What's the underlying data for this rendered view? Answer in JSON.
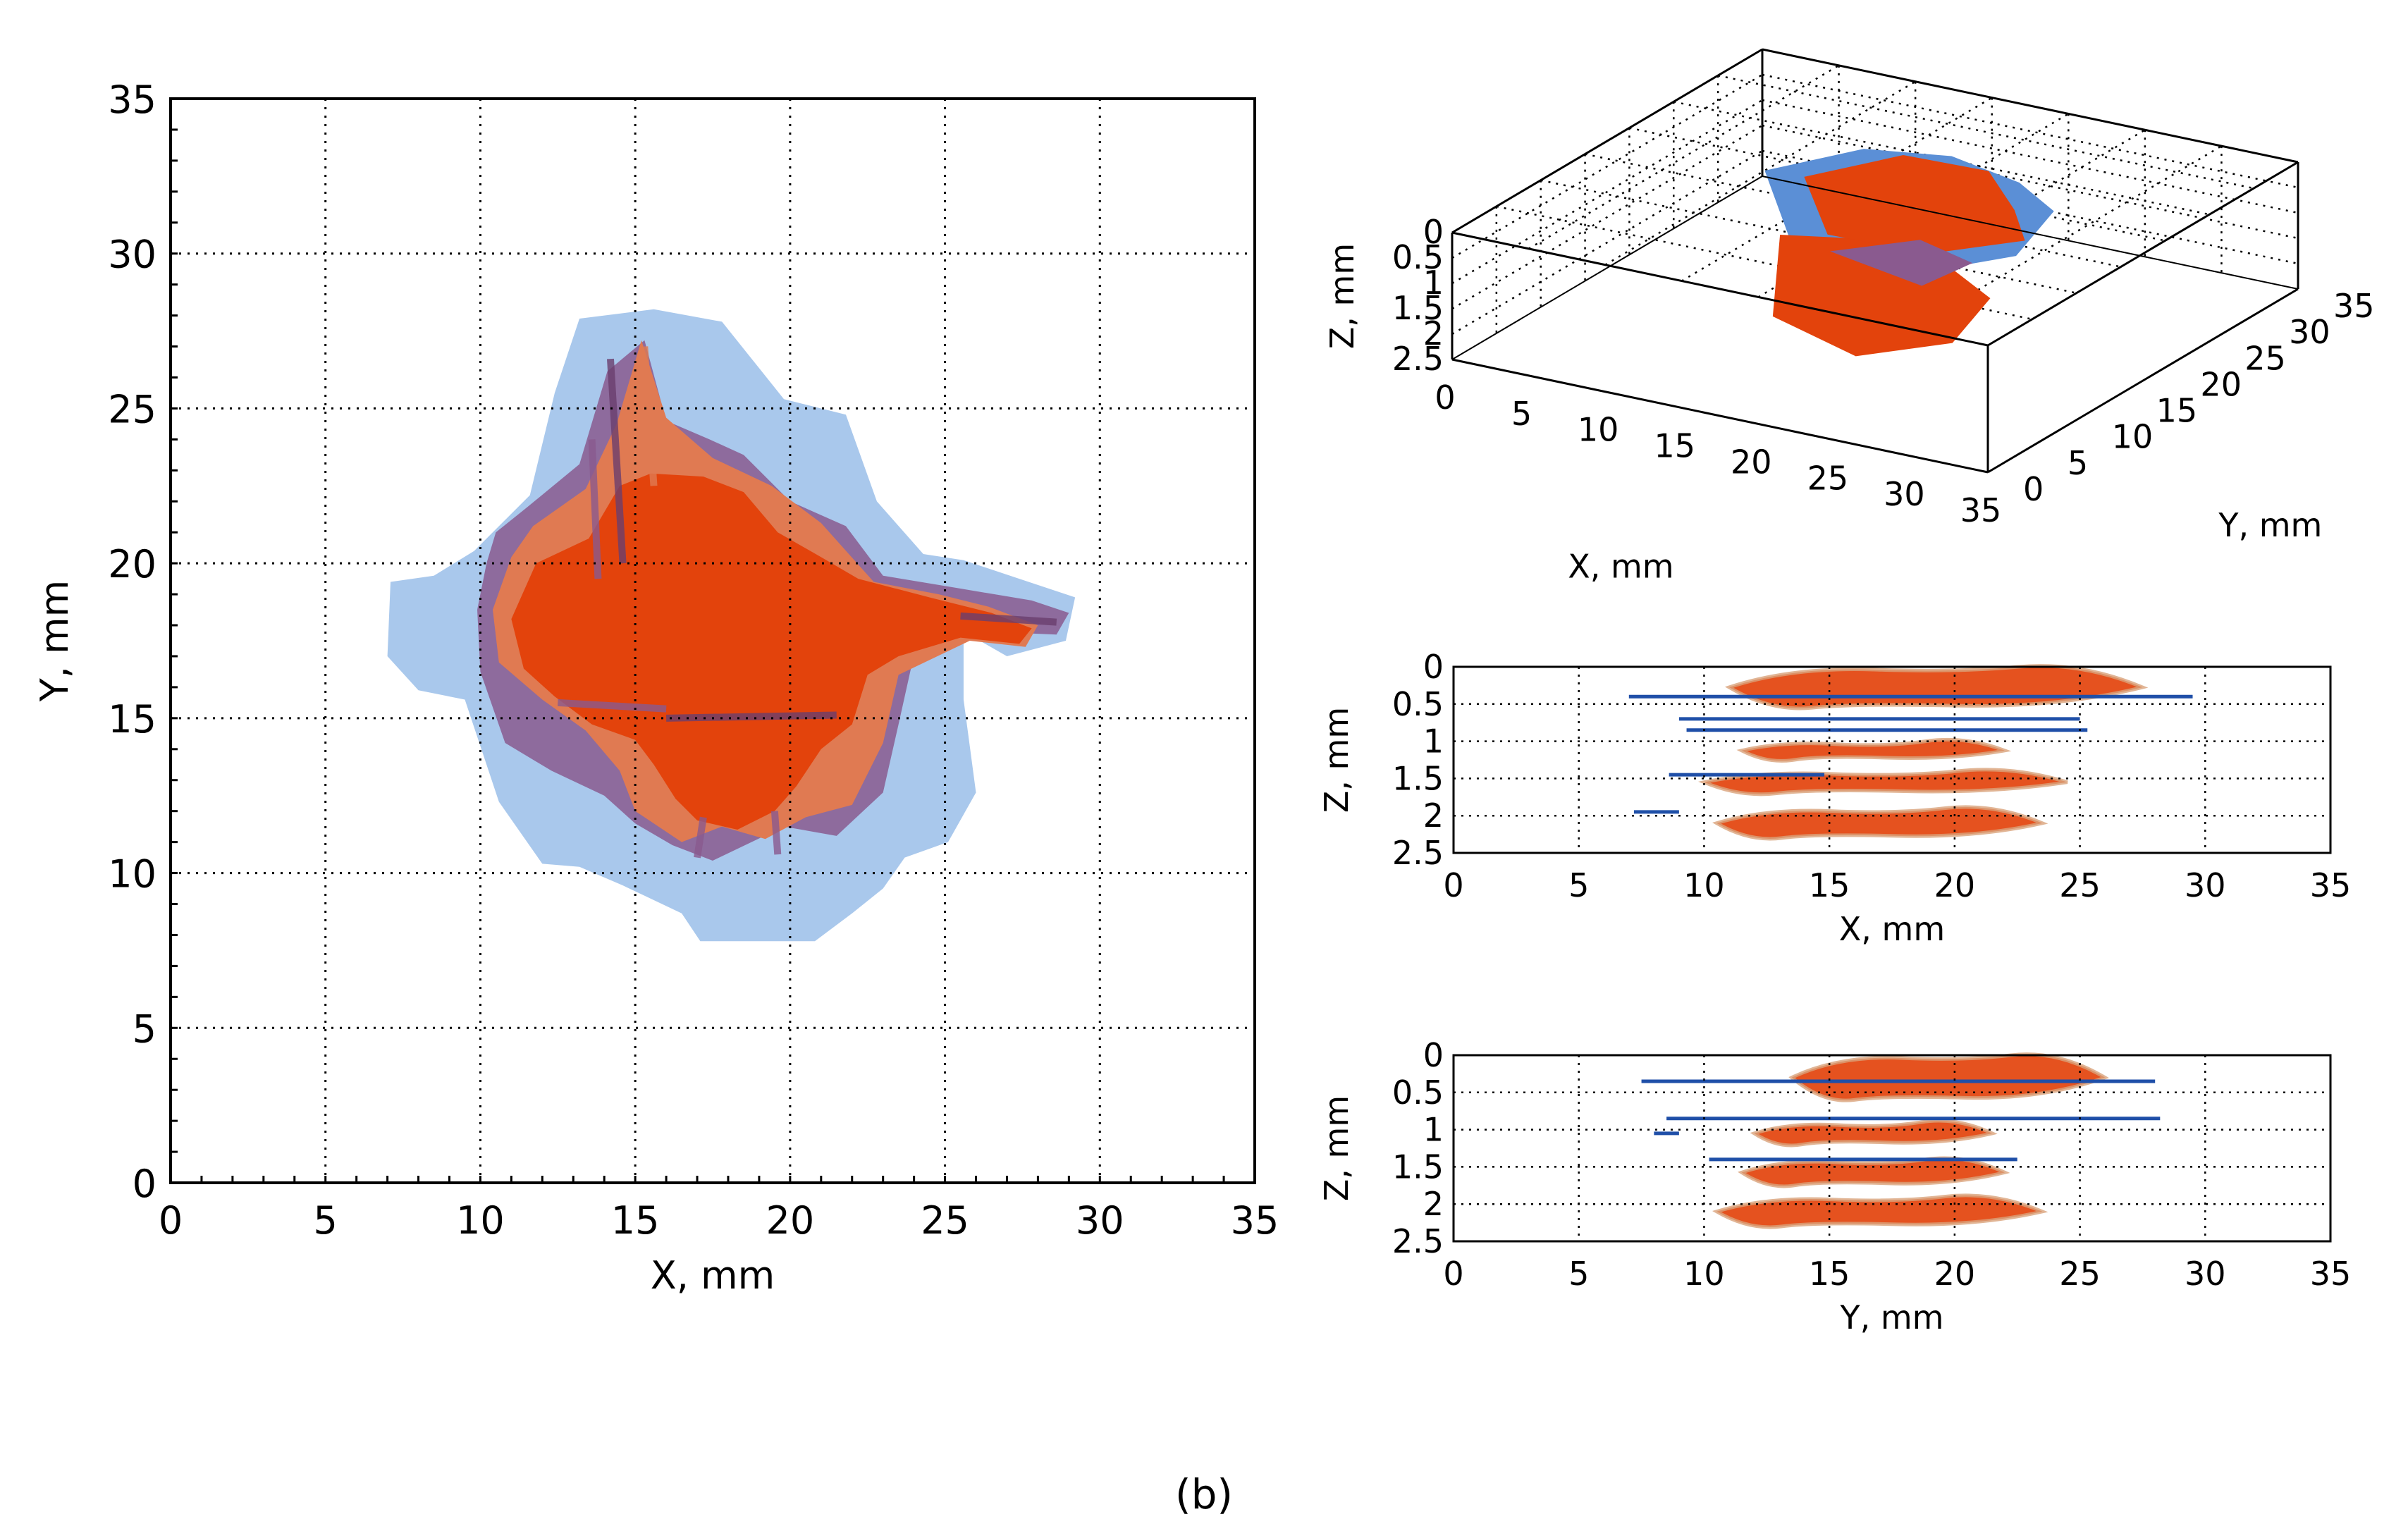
{
  "figure_label": "(b)",
  "colors": {
    "light_blue": "#a9c8ec",
    "mid_blue": "#5b8fd6",
    "dark_blue": "#1f4fa8",
    "orange": "#e3430c",
    "salmon": "#e07a52",
    "tan": "#d9a27a",
    "purple": "#8a5a8f",
    "dark_purple": "#6b3f6e"
  },
  "chart_data": [
    {
      "id": "main-xy",
      "type": "heatmap",
      "title": "",
      "xlabel": "X, mm",
      "ylabel": "Y, mm",
      "xlim": [
        0,
        35
      ],
      "ylim": [
        0,
        35
      ],
      "xticks": [
        "0",
        "5",
        "10",
        "15",
        "20",
        "25",
        "30",
        "35"
      ],
      "yticks": [
        "0",
        "5",
        "10",
        "15",
        "20",
        "25",
        "30",
        "35"
      ],
      "grid": true,
      "regions": [
        {
          "name": "light-blue-footprint",
          "color": "light_blue",
          "polygon": [
            [
              8.5,
              19.6
            ],
            [
              9.8,
              20.4
            ],
            [
              11.6,
              22.2
            ],
            [
              12.4,
              25.5
            ],
            [
              13.2,
              27.9
            ],
            [
              15.6,
              28.2
            ],
            [
              17.8,
              27.8
            ],
            [
              19.0,
              26.3
            ],
            [
              19.8,
              25.3
            ],
            [
              21.8,
              24.8
            ],
            [
              22.8,
              22.0
            ],
            [
              24.3,
              20.3
            ],
            [
              25.6,
              20.1
            ],
            [
              27.4,
              19.5
            ],
            [
              29.2,
              18.9
            ],
            [
              28.9,
              17.5
            ],
            [
              27.0,
              17.0
            ],
            [
              25.6,
              17.8
            ],
            [
              25.6,
              15.6
            ],
            [
              26.0,
              12.6
            ],
            [
              25.1,
              11.0
            ],
            [
              23.7,
              10.5
            ],
            [
              23.0,
              9.5
            ],
            [
              22.0,
              8.7
            ],
            [
              20.8,
              7.8
            ],
            [
              17.1,
              7.8
            ],
            [
              16.5,
              8.7
            ],
            [
              14.6,
              9.6
            ],
            [
              13.2,
              10.2
            ],
            [
              12.0,
              10.3
            ],
            [
              10.6,
              12.3
            ],
            [
              9.5,
              15.6
            ],
            [
              8.0,
              15.9
            ],
            [
              7.0,
              17.0
            ],
            [
              7.1,
              19.4
            ]
          ]
        },
        {
          "name": "purple-damage",
          "color": "purple",
          "polygon": [
            [
              10.5,
              21.0
            ],
            [
              11.5,
              21.8
            ],
            [
              13.2,
              23.2
            ],
            [
              14.1,
              26.2
            ],
            [
              15.3,
              27.2
            ],
            [
              16.0,
              24.6
            ],
            [
              17.4,
              24.0
            ],
            [
              18.5,
              23.5
            ],
            [
              20.0,
              22.0
            ],
            [
              21.8,
              21.2
            ],
            [
              23.0,
              19.6
            ],
            [
              25.4,
              19.2
            ],
            [
              27.8,
              18.8
            ],
            [
              29.0,
              18.4
            ],
            [
              28.6,
              17.7
            ],
            [
              26.2,
              17.8
            ],
            [
              23.9,
              16.6
            ],
            [
              23.5,
              14.8
            ],
            [
              23.0,
              12.6
            ],
            [
              21.5,
              11.2
            ],
            [
              19.8,
              11.5
            ],
            [
              17.5,
              10.4
            ],
            [
              16.2,
              10.9
            ],
            [
              15.0,
              11.6
            ],
            [
              14.0,
              12.5
            ],
            [
              12.3,
              13.3
            ],
            [
              10.8,
              14.2
            ],
            [
              10.0,
              16.5
            ],
            [
              9.9,
              18.5
            ],
            [
              10.2,
              20.0
            ]
          ]
        },
        {
          "name": "salmon-damage",
          "color": "salmon",
          "polygon": [
            [
              11.7,
              21.2
            ],
            [
              13.4,
              22.4
            ],
            [
              14.4,
              24.5
            ],
            [
              15.2,
              27.2
            ],
            [
              16.0,
              24.7
            ],
            [
              17.5,
              23.4
            ],
            [
              19.4,
              22.5
            ],
            [
              21.0,
              21.3
            ],
            [
              22.7,
              19.4
            ],
            [
              24.8,
              19.0
            ],
            [
              26.4,
              18.6
            ],
            [
              28.0,
              18.0
            ],
            [
              27.6,
              17.3
            ],
            [
              25.8,
              17.5
            ],
            [
              23.5,
              16.4
            ],
            [
              23.0,
              14.2
            ],
            [
              22.0,
              12.2
            ],
            [
              20.5,
              11.8
            ],
            [
              19.2,
              11.1
            ],
            [
              17.8,
              11.5
            ],
            [
              16.5,
              11.0
            ],
            [
              15.0,
              12.0
            ],
            [
              14.5,
              13.3
            ],
            [
              13.4,
              14.6
            ],
            [
              12.0,
              15.6
            ],
            [
              10.6,
              16.8
            ],
            [
              10.4,
              18.5
            ],
            [
              11.0,
              20.2
            ]
          ]
        },
        {
          "name": "orange-core",
          "color": "orange",
          "polygon": [
            [
              11.8,
              20.0
            ],
            [
              13.5,
              20.8
            ],
            [
              14.5,
              22.5
            ],
            [
              15.5,
              22.9
            ],
            [
              17.2,
              22.8
            ],
            [
              18.5,
              22.3
            ],
            [
              19.6,
              21.0
            ],
            [
              21.0,
              20.2
            ],
            [
              22.2,
              19.5
            ],
            [
              24.5,
              18.9
            ],
            [
              26.5,
              18.4
            ],
            [
              27.8,
              17.9
            ],
            [
              27.4,
              17.4
            ],
            [
              25.5,
              17.6
            ],
            [
              23.5,
              17.0
            ],
            [
              22.5,
              16.4
            ],
            [
              22.0,
              14.8
            ],
            [
              21.0,
              14.0
            ],
            [
              20.2,
              12.8
            ],
            [
              19.5,
              12.0
            ],
            [
              18.3,
              11.4
            ],
            [
              17.0,
              11.7
            ],
            [
              16.3,
              12.4
            ],
            [
              15.6,
              13.5
            ],
            [
              15.0,
              14.3
            ],
            [
              13.6,
              14.8
            ],
            [
              12.4,
              15.7
            ],
            [
              11.4,
              16.6
            ],
            [
              11.0,
              18.2
            ]
          ]
        }
      ]
    },
    {
      "id": "iso-3d",
      "type": "scatter",
      "title": "",
      "xlabel": "X, mm",
      "ylabel": "Y, mm",
      "zlabel": "Z, mm",
      "xlim": [
        0,
        35
      ],
      "ylim": [
        0,
        35
      ],
      "zlim": [
        0,
        2.5
      ],
      "xticks": [
        "0",
        "5",
        "10",
        "15",
        "20",
        "25",
        "30",
        "35"
      ],
      "yticks": [
        "0",
        "5",
        "10",
        "15",
        "20",
        "25",
        "30",
        "35"
      ],
      "zticks": [
        "0",
        "0.5",
        "1",
        "1.5",
        "2",
        "2.5"
      ],
      "grid": true
    },
    {
      "id": "xz-section",
      "type": "scatter",
      "title": "",
      "xlabel": "X, mm",
      "ylabel": "Z, mm",
      "xlim": [
        0,
        35
      ],
      "ylim": [
        0,
        2.5
      ],
      "xticks": [
        "0",
        "5",
        "10",
        "15",
        "20",
        "25",
        "30",
        "35"
      ],
      "yticks": [
        "0",
        "0.5",
        "1",
        "1.5",
        "2",
        "2.5"
      ],
      "grid": true,
      "blue_lines": [
        {
          "x": [
            7.0,
            29.5
          ],
          "z": 0.4
        },
        {
          "x": [
            9.0,
            25.0
          ],
          "z": 0.7
        },
        {
          "x": [
            9.3,
            25.3
          ],
          "z": 0.85
        },
        {
          "x": [
            8.6,
            14.8
          ],
          "z": 1.45
        },
        {
          "x": [
            7.2,
            9.0
          ],
          "z": 1.95
        }
      ],
      "orange_regions": [
        {
          "x": [
            10.5,
            23.5
          ],
          "z": [
            1.9,
            2.3
          ]
        },
        {
          "x": [
            10.0,
            24.5
          ],
          "z": [
            1.4,
            1.7
          ]
        },
        {
          "x": [
            11.5,
            22.0
          ],
          "z": [
            1.0,
            1.25
          ]
        },
        {
          "x": [
            11.0,
            27.5
          ],
          "z": [
            0.0,
            0.55
          ]
        }
      ]
    },
    {
      "id": "yz-section",
      "type": "scatter",
      "title": "",
      "xlabel": "Y, mm",
      "ylabel": "Z, mm",
      "xlim": [
        0,
        35
      ],
      "ylim": [
        0,
        2.5
      ],
      "xticks": [
        "0",
        "5",
        "10",
        "15",
        "20",
        "25",
        "30",
        "35"
      ],
      "yticks": [
        "0",
        "0.5",
        "1",
        "1.5",
        "2",
        "2.5"
      ],
      "grid": true,
      "blue_lines": [
        {
          "x": [
            7.5,
            28.0
          ],
          "z": 0.35
        },
        {
          "x": [
            8.5,
            28.2
          ],
          "z": 0.85
        },
        {
          "x": [
            10.2,
            22.5
          ],
          "z": 1.4
        },
        {
          "x": [
            8.0,
            9.0
          ],
          "z": 1.05
        }
      ],
      "orange_regions": [
        {
          "x": [
            10.5,
            23.5
          ],
          "z": [
            1.9,
            2.3
          ]
        },
        {
          "x": [
            11.5,
            22.0
          ],
          "z": [
            1.4,
            1.75
          ]
        },
        {
          "x": [
            12.0,
            21.5
          ],
          "z": [
            0.9,
            1.2
          ]
        },
        {
          "x": [
            13.5,
            26.0
          ],
          "z": [
            0.0,
            0.6
          ]
        }
      ]
    }
  ]
}
